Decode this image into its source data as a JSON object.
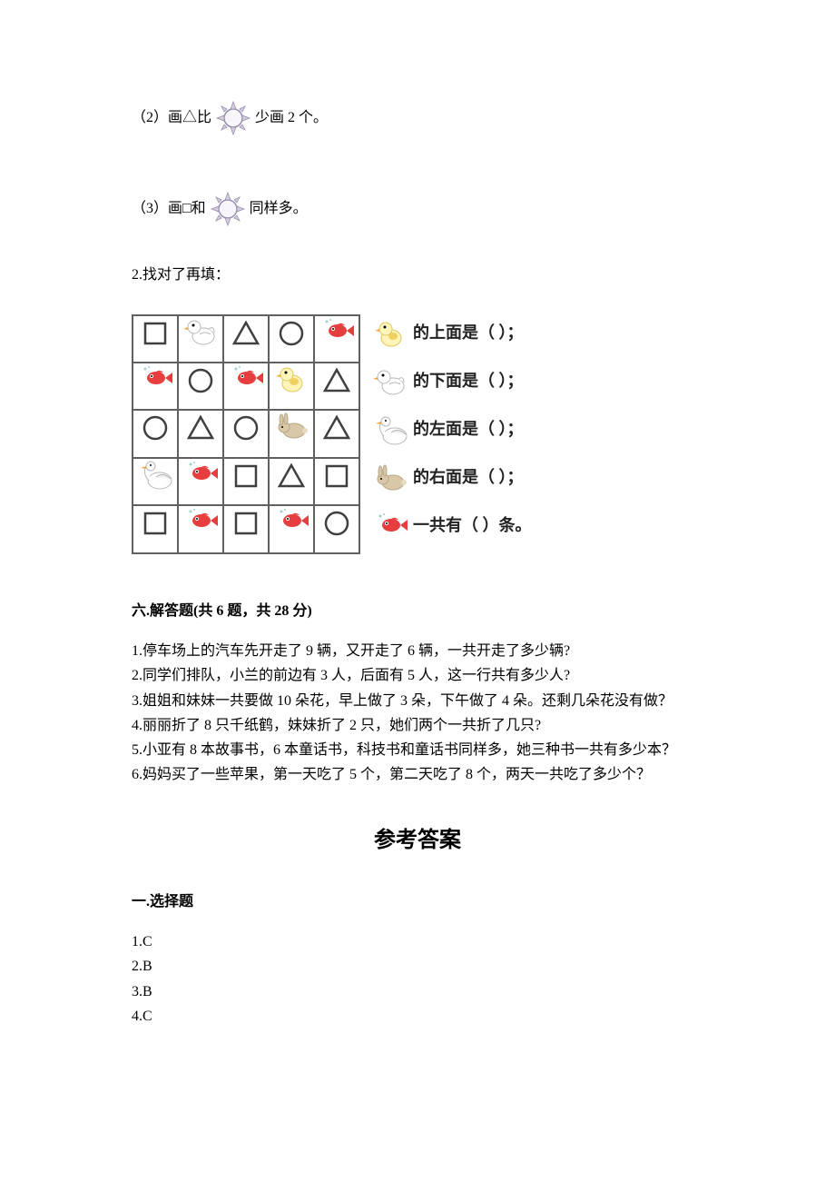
{
  "q_items": {
    "item2_pre": "（2）画△比",
    "item2_post": "少画 2 个。",
    "item3_pre": "（3）画□和",
    "item3_post": "同样多。"
  },
  "q2_title": "2.找对了再填：",
  "grid": {
    "rows": [
      [
        "square",
        "duck",
        "triangle",
        "circle",
        "fish"
      ],
      [
        "fish",
        "circle",
        "fish",
        "chick",
        "triangle"
      ],
      [
        "circle",
        "triangle",
        "circle",
        "rabbit",
        "triangle"
      ],
      [
        "goose",
        "fish",
        "square",
        "triangle",
        "square"
      ],
      [
        "square",
        "fish",
        "square",
        "fish",
        "circle"
      ]
    ]
  },
  "right_questions": [
    {
      "icon": "chick",
      "text": "的上面是（    ）；"
    },
    {
      "icon": "duck",
      "text": "的下面是（    ）；"
    },
    {
      "icon": "goose",
      "text": "的左面是（    ）；"
    },
    {
      "icon": "rabbit",
      "text": "的右面是（    ）；"
    },
    {
      "icon": "fish",
      "text": "一共有（    ）条。"
    }
  ],
  "section6_title": "六.解答题(共 6 题，共 28 分)",
  "word_problems": [
    "1.停车场上的汽车先开走了 9 辆，又开走了 6 辆，一共开走了多少辆?",
    "2.同学们排队，小兰的前边有 3 人，后面有 5 人，这一行共有多少人?",
    "3.姐姐和妹妹一共要做 10 朵花，早上做了 3 朵，下午做了 4 朵。还剩几朵花没有做？",
    "4.丽丽折了 8 只千纸鹤，妹妹折了 2 只，她们两个一共折了几只?",
    "5.小亚有 8 本故事书，6 本童话书，科技书和童话书同样多，她三种书一共有多少本？",
    "6.妈妈买了一些苹果，第一天吃了 5 个，第二天吃了 8 个，两天一共吃了多少个？"
  ],
  "answer_header": "参考答案",
  "section1_title": "一.选择题",
  "section1_answers": [
    "1.C",
    "2.B",
    "3.B",
    "4.C"
  ],
  "icons": {
    "sun_color": "#d4ccdd",
    "sun_stroke": "#9a8fb0",
    "fish_color": "#e63e3e",
    "duck_body": "#ffffff",
    "duck_beak": "#f4a940",
    "chick_body": "#fff5b8",
    "chick_wing": "#f0d060",
    "rabbit_color": "#d9c8a8",
    "goose_color": "#ffffff",
    "goose_beak": "#f4a940",
    "shape_stroke": "#404040"
  }
}
